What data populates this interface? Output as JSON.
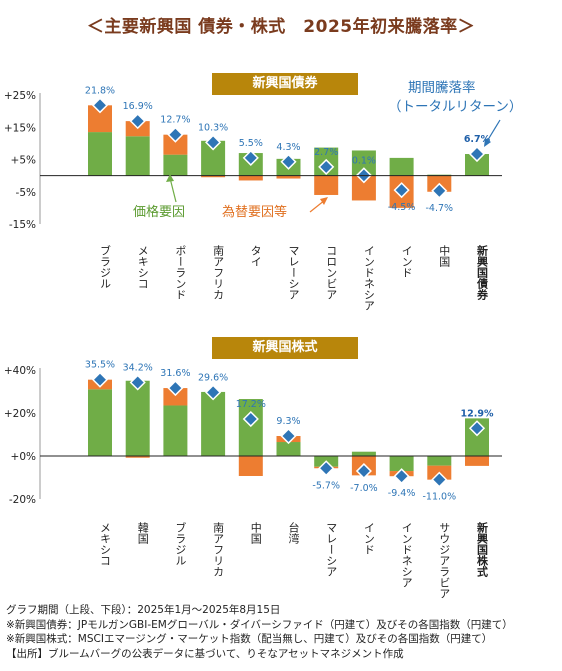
{
  "title": "＜主要新興国 債券・株式　2025年初来騰落率＞",
  "colors": {
    "green": "#70ad47",
    "orange": "#ed7d31",
    "marker": "#2e75b6",
    "band": "#b8860b",
    "title": "#7a3b1e",
    "label_blue": "#2e75b6"
  },
  "chart_data": [
    {
      "type": "bar",
      "title": "新興国債券",
      "yticks": [
        "+25%",
        "+15%",
        "+5%",
        "-5%",
        "-15%"
      ],
      "ylim": [
        -15,
        25
      ],
      "categories": [
        "ブラジル",
        "メキシコ",
        "ポーランド",
        "南アフリカ",
        "タイ",
        "マレーシア",
        "コロンビア",
        "インドネシア",
        "インド",
        "中国",
        "新興国債券"
      ],
      "series": [
        {
          "name": "価格要因",
          "values": [
            13.5,
            12.2,
            6.5,
            10.8,
            7.0,
            5.2,
            8.7,
            7.8,
            5.5,
            0.3,
            6.7
          ]
        },
        {
          "name": "為替要因等",
          "values": [
            8.3,
            4.7,
            6.2,
            -0.5,
            -1.5,
            -0.9,
            -6.0,
            -7.7,
            -10.0,
            -5.0,
            0.0
          ]
        }
      ],
      "total_name": "期間騰落率（トータルリターン）",
      "totals": [
        21.8,
        16.9,
        12.7,
        10.3,
        5.5,
        4.3,
        2.7,
        0.1,
        -4.5,
        -4.7,
        6.7
      ],
      "total_labels": [
        "21.8%",
        "16.9%",
        "12.7%",
        "10.3%",
        "5.5%",
        "4.3%",
        "2.7%",
        "0.1%",
        "-4.5%",
        "-4.7%",
        "6.7%"
      ],
      "legend_price": "価格要因",
      "legend_fx": "為替要因等",
      "legend_total_1": "期間騰落率",
      "legend_total_2": "（トータルリターン）"
    },
    {
      "type": "bar",
      "title": "新興国株式",
      "yticks": [
        "+40%",
        "+20%",
        "+0%",
        "-20%"
      ],
      "ylim": [
        -20,
        40
      ],
      "categories": [
        "メキシコ",
        "韓国",
        "ブラジル",
        "南アフリカ",
        "中国",
        "台湾",
        "マレーシア",
        "インド",
        "インドネシア",
        "サウジアラビア",
        "新興国株式"
      ],
      "series": [
        {
          "name": "価格要因",
          "values": [
            31.0,
            35.0,
            23.5,
            29.8,
            26.5,
            6.5,
            -5.0,
            2.0,
            -7.0,
            -4.5,
            17.5
          ]
        },
        {
          "name": "為替要因等",
          "values": [
            4.5,
            -0.8,
            8.1,
            -0.2,
            -9.3,
            2.8,
            -0.7,
            -9.0,
            -2.4,
            -6.5,
            -4.6
          ]
        }
      ],
      "totals": [
        35.5,
        34.2,
        31.6,
        29.6,
        17.2,
        9.3,
        -5.7,
        -7.0,
        -9.4,
        -11.0,
        12.9
      ],
      "total_labels": [
        "35.5%",
        "34.2%",
        "31.6%",
        "29.6%",
        "17.2%",
        "9.3%",
        "-5.7%",
        "-7.0%",
        "-9.4%",
        "-11.0%",
        "12.9%"
      ]
    }
  ],
  "notes": [
    "グラフ期間（上段、下段）：2025年1月～2025年8月15日",
    "※新興国債券：JPモルガンGBI-EMグローバル・ダイバーシファイド（円建て）及びその各国指数（円建て）",
    "※新興国株式：MSCIエマージング・マーケット指数（配当無し、円建て）及びその各国指数（円建て）",
    "【出所】ブルームバーグの公表データに基づいて、りそなアセットマネジメント作成"
  ]
}
